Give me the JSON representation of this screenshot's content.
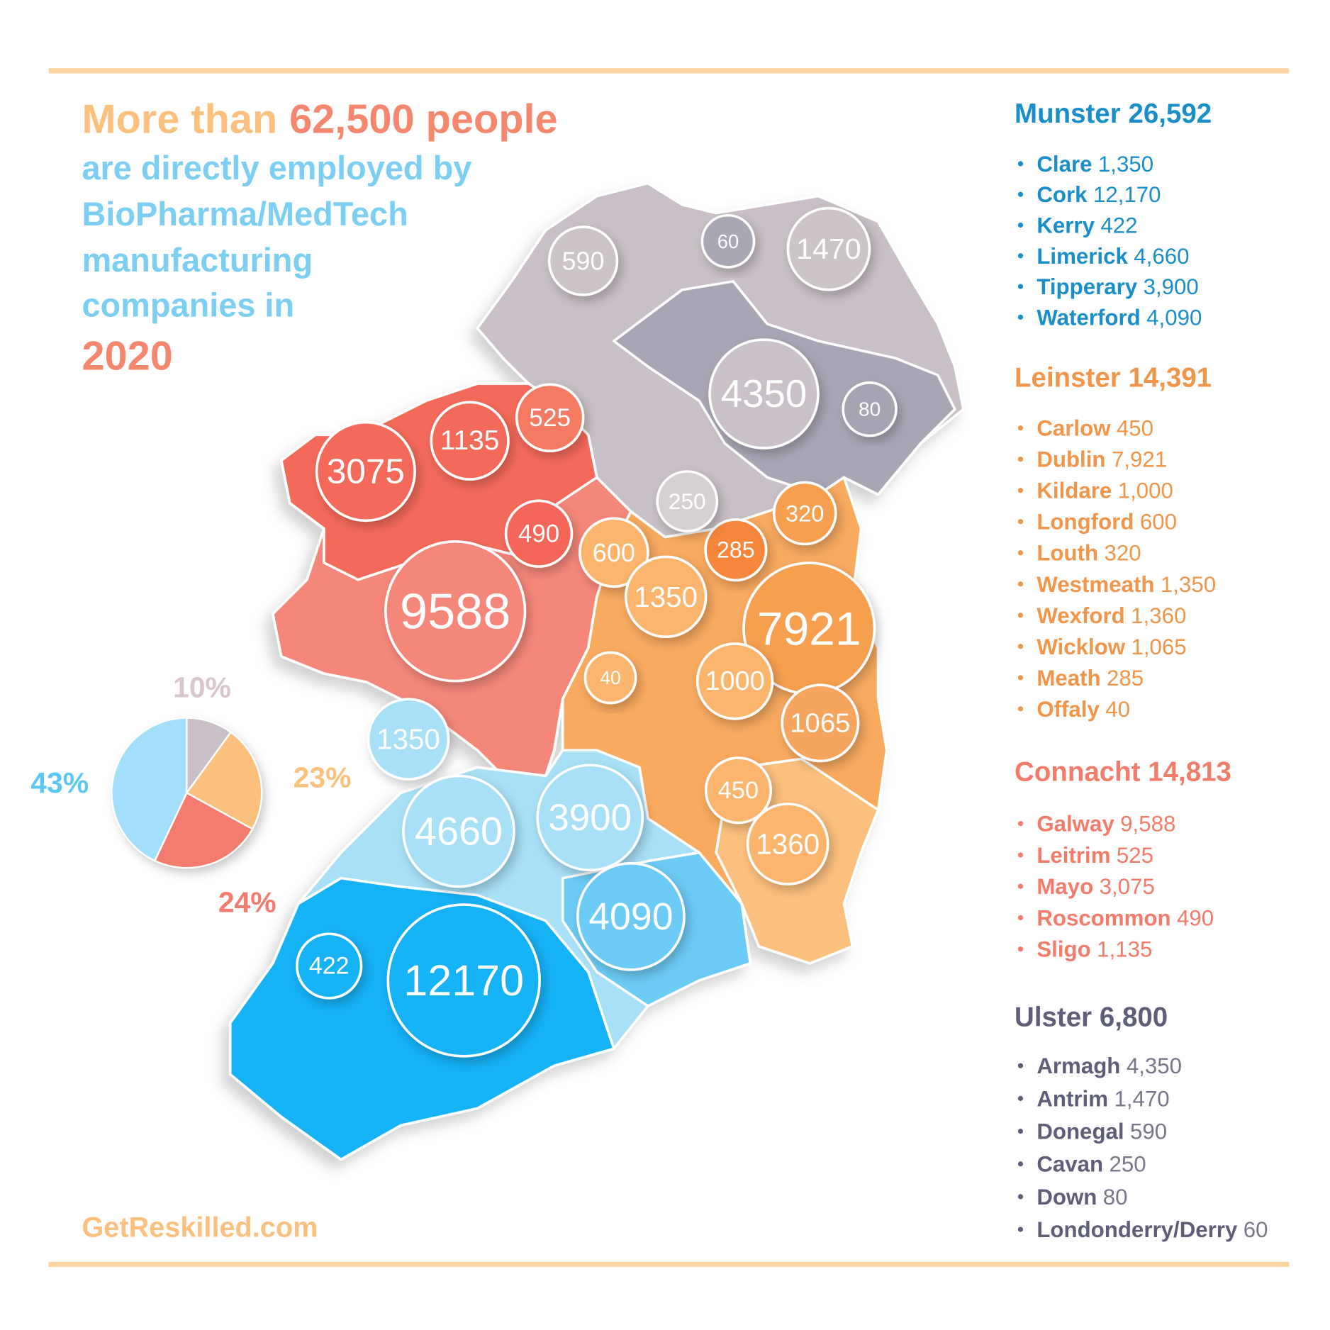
{
  "header": {
    "title": [
      "More than",
      "62,500 people"
    ],
    "subtitle_lines": [
      "are directly employed by",
      "BioPharma/MedTech",
      "manufacturing",
      "companies in"
    ],
    "year": "2020"
  },
  "chart_data": {
    "type": "pie",
    "values": [
      10,
      23,
      24,
      43
    ],
    "value_labels": [
      "10%",
      "23%",
      "24%",
      "43%"
    ],
    "colors": [
      "#c9bfc6",
      "#fcc07e",
      "#f47c6e",
      "#a3defa"
    ],
    "label_colors": [
      "#d9c6ca",
      "#fcc07e",
      "#f47c6e",
      "#5cc7f3"
    ]
  },
  "provinces": [
    {
      "name": "Munster",
      "total": "26,592",
      "color": "#1a8ec9",
      "value_color": "#1a8ec9",
      "counties": [
        {
          "name": "Clare",
          "value": "1,350"
        },
        {
          "name": "Cork",
          "value": "12,170"
        },
        {
          "name": "Kerry",
          "value": "422"
        },
        {
          "name": "Limerick",
          "value": "4,660"
        },
        {
          "name": "Tipperary",
          "value": "3,900"
        },
        {
          "name": "Waterford",
          "value": "4,090"
        }
      ],
      "bubbles": [
        1350,
        4660,
        3900,
        4090,
        422,
        12170
      ],
      "bubble_colors": [
        "#a8e0f7",
        "#a8e0f7",
        "#a8e0f7",
        "#6ccbf4",
        "#12b2f6",
        "#12b2f6"
      ]
    },
    {
      "name": "Leinster",
      "total": "14,391",
      "color": "#f0954a",
      "value_color": "#f0954a",
      "counties": [
        {
          "name": "Carlow",
          "value": "450"
        },
        {
          "name": "Dublin",
          "value": "7,921"
        },
        {
          "name": "Kildare",
          "value": "1,000"
        },
        {
          "name": "Longford",
          "value": "600"
        },
        {
          "name": "Louth",
          "value": "320"
        },
        {
          "name": "Westmeath",
          "value": "1,350"
        },
        {
          "name": "Wexford",
          "value": "1,360"
        },
        {
          "name": "Wicklow",
          "value": "1,065"
        },
        {
          "name": "Meath",
          "value": "285"
        },
        {
          "name": "Offaly",
          "value": "40"
        }
      ],
      "bubbles": [
        320,
        285,
        600,
        1350,
        7921,
        40,
        1000,
        1065,
        450,
        1360
      ],
      "bubble_colors": [
        "#f6a050",
        "#f5863a",
        "#fbb56c",
        "#fbb56c",
        "#f6a050",
        "#fbb56c",
        "#fbb56c",
        "#f6a55e",
        "#fbb56c",
        "#fbb56c"
      ]
    },
    {
      "name": "Connacht",
      "total": "14,813",
      "color": "#f27b6a",
      "value_color": "#f27b6a",
      "counties": [
        {
          "name": "Galway",
          "value": "9,588"
        },
        {
          "name": "Leitrim",
          "value": "525"
        },
        {
          "name": "Mayo",
          "value": "3,075"
        },
        {
          "name": "Roscommon",
          "value": "490"
        },
        {
          "name": "Sligo",
          "value": "1,135"
        }
      ],
      "bubbles": [
        3075,
        1135,
        525,
        490,
        9588
      ],
      "bubble_colors": [
        "#f46a5a",
        "#f46a5a",
        "#f57a62",
        "#f4665a",
        "#f5877a"
      ]
    },
    {
      "name": "Ulster",
      "total": "6,800",
      "color": "#5e5e78",
      "value_color": "#77778a",
      "counties": [
        {
          "name": "Armagh",
          "value": "4,350"
        },
        {
          "name": "Antrim",
          "value": "1,470"
        },
        {
          "name": "Donegal",
          "value": "590"
        },
        {
          "name": "Cavan",
          "value": "250"
        },
        {
          "name": "Down",
          "value": "80"
        },
        {
          "name": "Londonderry/Derry",
          "value": "60"
        }
      ],
      "bubbles": [
        590,
        60,
        1470,
        4350,
        80,
        250
      ],
      "bubble_colors": [
        "#ccc3c9",
        "#aaa6b4",
        "#ccc3c9",
        "#c9c0c8",
        "#a6a3b3",
        "#d6cfd3"
      ]
    }
  ],
  "footer": "GetReskilled.com"
}
